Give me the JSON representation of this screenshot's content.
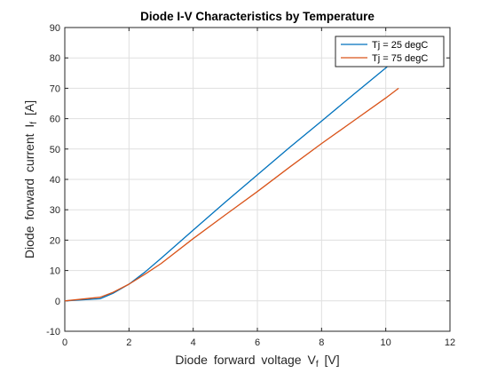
{
  "chart_data": {
    "type": "line",
    "title": "Diode I-V Characteristics by Temperature",
    "xlabel": {
      "main": "Diode  forward  voltage  V",
      "subscript": "f",
      "unit": " [V]"
    },
    "ylabel": {
      "main": "Diode  forward  current  I",
      "subscript": "f",
      "unit": " [A]"
    },
    "xlim": [
      0,
      12
    ],
    "ylim": [
      -10,
      90
    ],
    "xticks": [
      0,
      2,
      4,
      6,
      8,
      10,
      12
    ],
    "yticks": [
      -10,
      0,
      10,
      20,
      30,
      40,
      50,
      60,
      70,
      80,
      90
    ],
    "grid": true,
    "legend_position": "top-right",
    "series": [
      {
        "name": "Tj = 25 degC",
        "color": "#0072BD",
        "x": [
          0,
          1.1,
          1.5,
          2.0,
          2.5,
          3.0,
          4.0,
          5.0,
          6.0,
          7.0,
          8.0,
          9.0,
          10.0,
          10.4
        ],
        "y": [
          0,
          0.7,
          2.5,
          5.5,
          9.5,
          14.0,
          23.3,
          32.5,
          41.5,
          50.5,
          59.2,
          68.0,
          76.7,
          80.5
        ]
      },
      {
        "name": "Tj = 75 degC",
        "color": "#D95319",
        "x": [
          0,
          1.1,
          1.5,
          2.0,
          2.5,
          3.0,
          4.0,
          5.0,
          6.0,
          7.0,
          8.0,
          9.0,
          10.0,
          10.4
        ],
        "y": [
          0,
          1.2,
          2.8,
          5.5,
          8.8,
          12.3,
          20.5,
          28.3,
          36.0,
          44.0,
          51.8,
          59.3,
          66.8,
          70.0
        ]
      }
    ]
  }
}
